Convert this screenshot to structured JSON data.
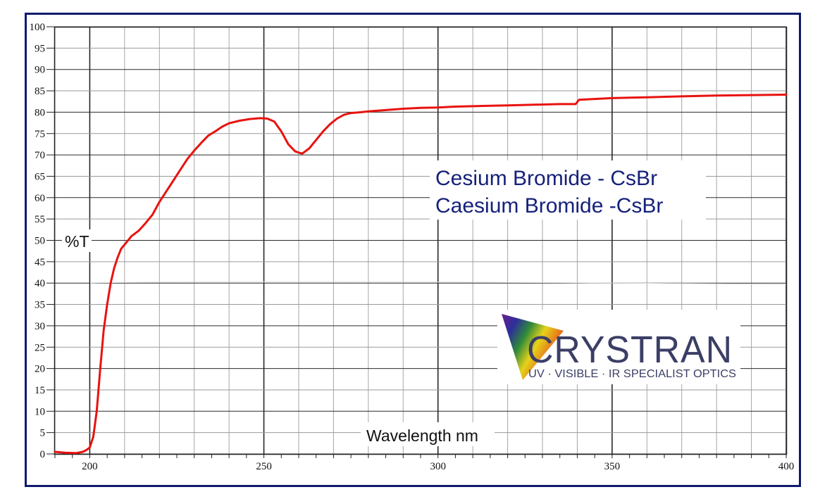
{
  "chart_data": {
    "type": "line",
    "title": [
      "Cesium Bromide - CsBr",
      "Caesium Bromide -CsBr"
    ],
    "xlabel": "Wavelength nm",
    "ylabel": "%T",
    "xlim": [
      190,
      400
    ],
    "ylim": [
      0,
      100
    ],
    "x_ticks": [
      200,
      250,
      300,
      350,
      400
    ],
    "y_ticks": [
      0,
      5,
      10,
      15,
      20,
      25,
      30,
      35,
      40,
      45,
      50,
      55,
      60,
      65,
      70,
      75,
      80,
      85,
      90,
      95,
      100
    ],
    "grid": true,
    "colors": {
      "line": "#e8130f",
      "frame": "#0f1a6e",
      "title": "#16217a",
      "grid": "#7a7a7a"
    },
    "series": [
      {
        "x": [
          190,
          193,
          196,
          198,
          199,
          200,
          201,
          202,
          203,
          204,
          205,
          206,
          207,
          208,
          209,
          210,
          212,
          214,
          216,
          218,
          220,
          222,
          224,
          226,
          228,
          230,
          232,
          234,
          236,
          238,
          240,
          243,
          246,
          249,
          251,
          253,
          255,
          257,
          259,
          261,
          263,
          265,
          267,
          269,
          271,
          273,
          275,
          278,
          280,
          285,
          290,
          295,
          300,
          305,
          310,
          315,
          320,
          325,
          330,
          335,
          339.5,
          340.5,
          345,
          350,
          360,
          370,
          380,
          390,
          400
        ],
        "y": [
          0.5,
          0.3,
          0.2,
          0.5,
          0.9,
          1.5,
          4,
          10,
          20,
          29,
          35,
          40,
          43.5,
          46,
          48,
          49,
          51,
          52.2,
          54,
          56,
          59,
          61.5,
          64,
          66.5,
          69,
          71,
          72.8,
          74.5,
          75.5,
          76.6,
          77.4,
          78,
          78.4,
          78.6,
          78.5,
          77.8,
          75.5,
          72.5,
          70.8,
          70.3,
          71.5,
          73.5,
          75.5,
          77.2,
          78.5,
          79.4,
          79.8,
          80,
          80.2,
          80.5,
          80.8,
          81,
          81.1,
          81.3,
          81.4,
          81.5,
          81.6,
          81.7,
          81.8,
          81.9,
          81.9,
          82.9,
          83.1,
          83.3,
          83.5,
          83.7,
          83.9,
          84,
          84.1
        ]
      }
    ]
  },
  "logo": {
    "name": "CRYSTRAN",
    "tagline": "UV · VISIBLE · IR SPECIALIST OPTICS"
  }
}
